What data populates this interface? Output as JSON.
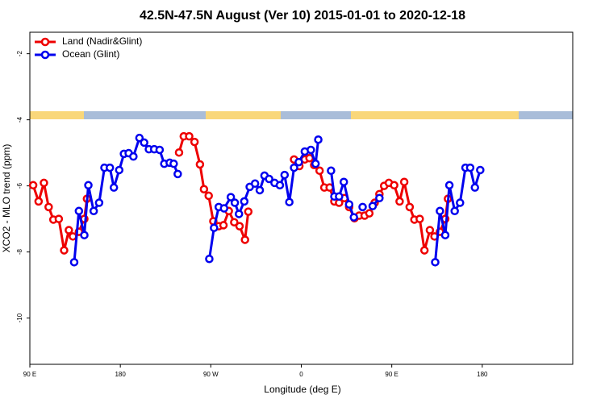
{
  "chart_data": {
    "type": "line",
    "title": "42.5N-47.5N August (Ver 10)   2015-01-01 to 2020-12-18",
    "x_label": "Longitude (deg E)",
    "y_label": "XCO2 - MLO trend (ppm)",
    "xlim": [
      90,
      630
    ],
    "xticks": [
      {
        "value": 90,
        "label": "90 E"
      },
      {
        "value": 180,
        "label": "180"
      },
      {
        "value": 270,
        "label": "90 W"
      },
      {
        "value": 360,
        "label": "0"
      },
      {
        "value": 450,
        "label": "90 E"
      },
      {
        "value": 540,
        "label": "180"
      }
    ],
    "ylim": [
      -11.4,
      -1.35
    ],
    "yticks": [
      -2,
      -4,
      -6,
      -8,
      -10
    ],
    "legend": "top-left",
    "series": [
      {
        "name": "Land (Nadir&Glint)",
        "color": "#ee0000",
        "x": [
          93.3,
          98.7,
          104.0,
          108.7,
          113.4,
          118.8,
          124.1,
          128.8,
          132.8,
          138.8,
          144.2,
          146.8,
          null,
          238.4,
          243.1,
          248.5,
          253.8,
          259.2,
          263.2,
          267.9,
          272.5,
          277.9,
          282.6,
          287.9,
          293.3,
          298.6,
          304.0,
          307.3,
          null,
          352.8,
          358.1,
          363.5,
          368.2,
          372.8,
          378.2,
          382.9,
          388.2,
          392.9,
          397.6,
          402.9,
          407.6,
          412.9,
          417.6,
          423.0,
          427.7,
          433.0,
          437.7,
          442.4,
          447.1,
          452.4,
          457.8,
          462.4,
          467.8,
          472.5,
          477.8,
          482.5,
          487.9,
          492.5,
          497.9,
          503.2,
          505.9
        ],
        "values": [
          -5.98,
          -6.47,
          -5.91,
          -6.64,
          -7.02,
          -7.0,
          -7.95,
          -7.34,
          -7.53,
          -7.39,
          -7.0,
          -6.39,
          null,
          -4.99,
          -4.5,
          -4.5,
          -4.67,
          -5.35,
          -6.1,
          -6.3,
          -7.07,
          -7.22,
          -7.19,
          -6.76,
          -7.1,
          -7.22,
          -7.63,
          -6.78,
          null,
          -5.2,
          -5.4,
          -5.2,
          -5.16,
          -5.37,
          -5.54,
          -6.05,
          -6.05,
          -6.47,
          -6.51,
          -6.37,
          -6.64,
          -6.98,
          -6.9,
          -6.9,
          -6.83,
          -6.51,
          -6.25,
          -6.0,
          -5.91,
          -5.98,
          -6.47,
          -5.88,
          -6.64,
          -7.02,
          -7.0,
          -7.95,
          -7.34,
          -7.53,
          -7.39,
          -7.0,
          -6.39
        ]
      },
      {
        "name": "Ocean (Glint)",
        "color": "#0000ee",
        "x": [
          134.1,
          138.8,
          144.2,
          148.2,
          153.5,
          158.9,
          164.2,
          169.6,
          173.6,
          178.9,
          183.6,
          188.3,
          193.0,
          199.0,
          203.7,
          208.4,
          213.7,
          219.1,
          223.7,
          229.1,
          233.1,
          237.1,
          null,
          268.5,
          273.2,
          277.9,
          283.2,
          289.9,
          293.9,
          298.0,
          303.3,
          308.7,
          314.0,
          318.7,
          323.4,
          328.0,
          333.4,
          338.7,
          343.4,
          348.1,
          352.8,
          357.5,
          363.5,
          369.5,
          374.2,
          376.9,
          null,
          389.6,
          392.9,
          397.6,
          402.3,
          407.6,
          412.3,
          null,
          421.0,
          null,
          431.0,
          437.7,
          null,
          493.2,
          497.9,
          503.2,
          507.3,
          512.6,
          517.9,
          523.3,
          528.0,
          532.7,
          538.0
        ],
        "values": [
          -8.31,
          -6.76,
          -7.49,
          -5.98,
          -6.76,
          -6.51,
          -5.45,
          -5.45,
          -6.05,
          -5.52,
          -5.03,
          -5.01,
          -5.11,
          -4.55,
          -4.69,
          -4.89,
          -4.89,
          -4.91,
          -5.33,
          -5.3,
          -5.33,
          -5.64,
          null,
          -8.21,
          -7.27,
          -6.64,
          -6.68,
          -6.34,
          -6.51,
          -6.85,
          -6.47,
          -6.03,
          -5.93,
          -6.13,
          -5.69,
          -5.79,
          -5.91,
          -5.98,
          -5.67,
          -6.49,
          -5.45,
          -5.28,
          -4.96,
          -4.91,
          -5.33,
          -4.6,
          null,
          -5.54,
          -6.32,
          -6.32,
          -5.88,
          -6.56,
          -6.95,
          null,
          -6.64,
          null,
          -6.61,
          -6.37,
          null,
          -8.31,
          -6.76,
          -7.49,
          -5.98,
          -6.76,
          -6.51,
          -5.45,
          -5.45,
          -6.05,
          -5.52
        ]
      }
    ]
  }
}
